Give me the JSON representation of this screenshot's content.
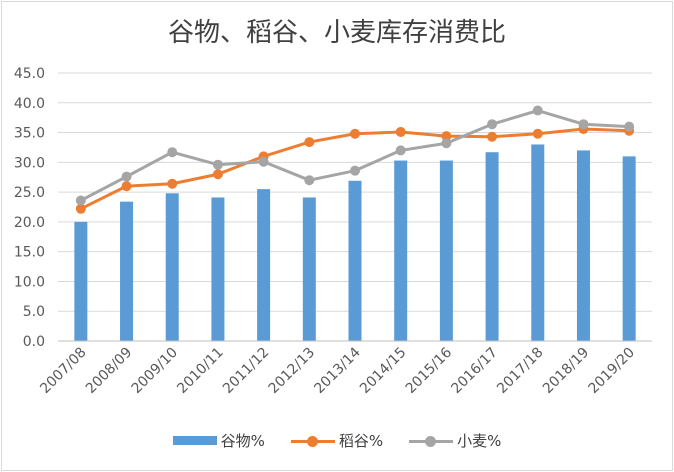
{
  "chart_data": {
    "type": "bar",
    "title": "谷物、稻谷、小麦库存消费比",
    "categories": [
      "2007/08",
      "2008/09",
      "2009/10",
      "2010/11",
      "2011/12",
      "2012/13",
      "2013/14",
      "2014/15",
      "2015/16",
      "2016/17",
      "2017/18",
      "2018/19",
      "2019/20"
    ],
    "ylim": [
      0,
      45
    ],
    "yticks": [
      "0.0",
      "5.0",
      "10.0",
      "15.0",
      "20.0",
      "25.0",
      "30.0",
      "35.0",
      "40.0",
      "45.0"
    ],
    "grid": true,
    "legend_position": "bottom",
    "series": [
      {
        "name": "谷物%",
        "type": "bar",
        "color": "#5b9bd5",
        "values": [
          20.0,
          23.4,
          24.8,
          24.1,
          25.5,
          24.1,
          26.9,
          30.3,
          30.3,
          31.7,
          33.0,
          32.0,
          31.0
        ]
      },
      {
        "name": "稻谷%",
        "type": "line",
        "color": "#ed7d31",
        "values": [
          22.2,
          26.0,
          26.4,
          28.0,
          31.0,
          33.4,
          34.8,
          35.1,
          34.4,
          34.3,
          34.8,
          35.6,
          35.3
        ]
      },
      {
        "name": "小麦%",
        "type": "line",
        "color": "#a5a5a5",
        "values": [
          23.6,
          27.6,
          31.7,
          29.6,
          30.1,
          27.0,
          28.6,
          32.0,
          33.2,
          36.4,
          38.7,
          36.4,
          36.0
        ]
      }
    ]
  }
}
